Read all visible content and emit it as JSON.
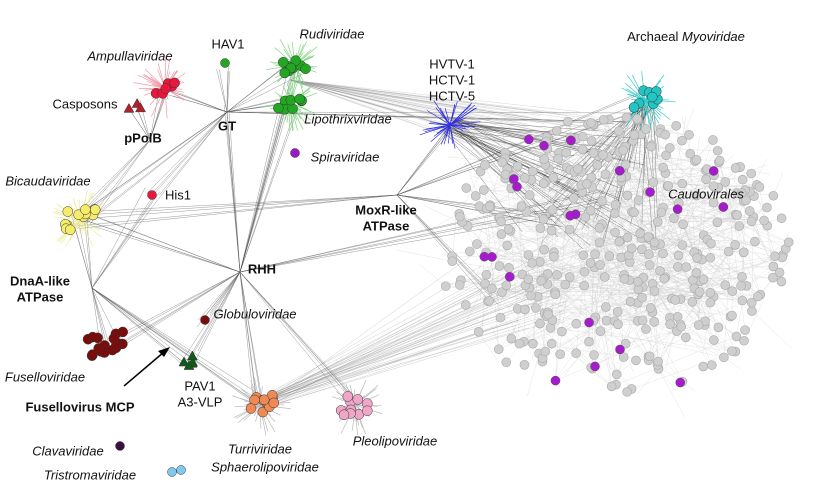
{
  "nodes": [
    {
      "label": "HAV1"
    },
    {
      "label": "Rudiviridae"
    },
    {
      "label": "Ampullaviridae"
    },
    {
      "label": "Casposons"
    },
    {
      "label": "pPolB"
    },
    {
      "label": "GT"
    },
    {
      "label": "Lipothrixviridae"
    },
    {
      "label": "Spiraviridae"
    },
    {
      "lines": [
        "HVTV-1",
        "HCTV-1",
        "HCTV-5"
      ]
    },
    {
      "prefix": "Archaeal",
      "label": "Myoviridae"
    },
    {
      "label": "Bicaudaviridae"
    },
    {
      "label": "His1"
    },
    {
      "lines": [
        "MoxR-like",
        "ATPase"
      ]
    },
    {
      "label": "Caudovirales"
    },
    {
      "label": "RHH"
    },
    {
      "lines": [
        "DnaA-like",
        "ATPase"
      ]
    },
    {
      "label": "Globuloviridae"
    },
    {
      "label": "Fuselloviridae"
    },
    {
      "lines": [
        "PAV1",
        "A3-VLP"
      ]
    },
    {
      "label": "Fusellovirus MCP"
    },
    {
      "label": "Turriviridae"
    },
    {
      "label": "Sphaerolipoviridae"
    },
    {
      "label": "Pleolipoviridae"
    },
    {
      "label": "Clavaviridae"
    },
    {
      "label": "Tristromaviridae"
    }
  ]
}
